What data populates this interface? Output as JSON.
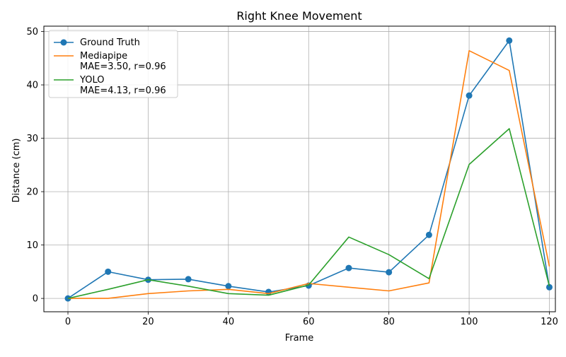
{
  "chart_data": {
    "type": "line",
    "title": "Right Knee Movement",
    "xlabel": "Frame",
    "ylabel": "Distance (cm)",
    "xlim": [
      -6,
      121.5
    ],
    "ylim": [
      -2.5,
      51
    ],
    "xticks": [
      0,
      20,
      40,
      60,
      80,
      100,
      120
    ],
    "yticks": [
      0,
      10,
      20,
      30,
      40,
      50
    ],
    "grid": true,
    "legend_position": "upper-left",
    "x": [
      0,
      10,
      20,
      30,
      40,
      50,
      60,
      70,
      80,
      90,
      100,
      110,
      120
    ],
    "series": [
      {
        "name": "Ground Truth",
        "color": "#1f77b4",
        "markers": true,
        "values": [
          0.0,
          5.0,
          3.5,
          3.6,
          2.3,
          1.2,
          2.4,
          5.7,
          4.9,
          11.9,
          38.0,
          48.3,
          2.1
        ]
      },
      {
        "name": "Mediapipe\nMAE=3.50, r=0.96",
        "color": "#ff7f0e",
        "markers": false,
        "values": [
          0.0,
          0.0,
          0.9,
          1.4,
          1.7,
          0.9,
          2.8,
          2.1,
          1.4,
          2.9,
          46.4,
          42.7,
          6.0
        ]
      },
      {
        "name": "YOLO\nMAE=4.13, r=0.96",
        "color": "#2ca02c",
        "markers": false,
        "values": [
          0.0,
          1.7,
          3.5,
          2.3,
          0.9,
          0.6,
          2.5,
          11.5,
          8.2,
          3.7,
          25.1,
          31.8,
          2.3
        ]
      }
    ]
  }
}
